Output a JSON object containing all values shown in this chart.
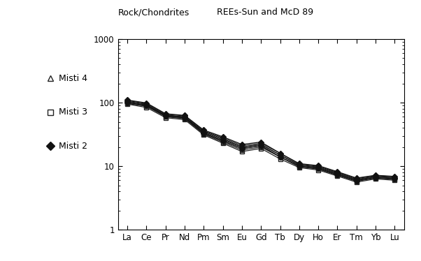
{
  "elements": [
    "La",
    "Ce",
    "Pr",
    "Nd",
    "Pm",
    "Sm",
    "Eu",
    "Gd",
    "Tb",
    "Dy",
    "Ho",
    "Er",
    "Tm",
    "Yb",
    "Lu"
  ],
  "title_left": "Rock/Chondrites",
  "title_right": "REEs-Sun and McD 89",
  "ylim": [
    1,
    1000
  ],
  "background_color": "#ffffff",
  "series": {
    "Misti 4": {
      "marker": "^",
      "fillstyle": "none",
      "color": "#222222",
      "linewidth": 0.9,
      "markersize": 4,
      "samples": [
        [
          97,
          88,
          60,
          56,
          32,
          24,
          18,
          20,
          14,
          9.8,
          9.0,
          7.2,
          5.8,
          6.5,
          6.2
        ],
        [
          103,
          92,
          63,
          59,
          34,
          26,
          20,
          22,
          15,
          10.3,
          9.5,
          7.6,
          6.1,
          6.8,
          6.5
        ],
        [
          108,
          97,
          66,
          62,
          36,
          28,
          21,
          23,
          16,
          10.8,
          10.0,
          8.0,
          6.4,
          7.1,
          6.8
        ]
      ]
    },
    "Misti 3": {
      "marker": "s",
      "fillstyle": "none",
      "color": "#222222",
      "linewidth": 0.9,
      "markersize": 4,
      "samples": [
        [
          95,
          84,
          58,
          54,
          31,
          23,
          17,
          19,
          13,
          9.5,
          8.7,
          7.0,
          5.6,
          6.3,
          6.0
        ],
        [
          100,
          88,
          61,
          57,
          33,
          25,
          19,
          21,
          14,
          10.0,
          9.2,
          7.4,
          5.9,
          6.6,
          6.3
        ]
      ]
    },
    "Misti 2": {
      "marker": "D",
      "fillstyle": "full",
      "color": "#111111",
      "linewidth": 0.9,
      "markersize": 4,
      "samples": [
        [
          100,
          90,
          62,
          58,
          33,
          25,
          19,
          21,
          14,
          10.0,
          9.2,
          7.4,
          5.9,
          6.6,
          6.3
        ],
        [
          105,
          94,
          64,
          60,
          35,
          27,
          20,
          22,
          15,
          10.5,
          9.7,
          7.8,
          6.2,
          6.9,
          6.6
        ],
        [
          110,
          99,
          67,
          63,
          37,
          29,
          22,
          24,
          16,
          11.0,
          10.2,
          8.2,
          6.5,
          7.2,
          6.9
        ]
      ]
    }
  },
  "legend_entries": [
    "Misti 4",
    "Misti 3",
    "Misti 2"
  ],
  "legend_markers": [
    "^",
    "s",
    "D"
  ],
  "legend_fillstyles": [
    "none",
    "none",
    "full"
  ]
}
